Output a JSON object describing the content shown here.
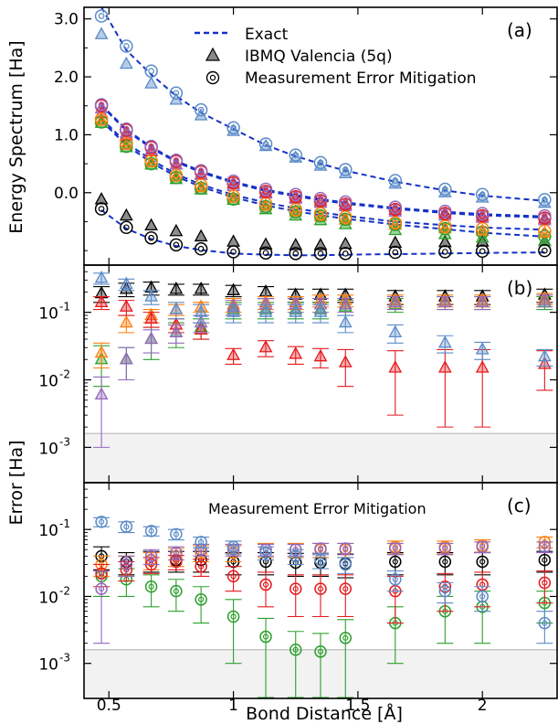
{
  "figure": {
    "x_axis_label": "Bond Distance [Å]",
    "x_ticks": [
      "0.5",
      "1",
      "1.5",
      "2"
    ],
    "shared_y_label": "Error [Ha]"
  },
  "legend": {
    "exact": "Exact",
    "raw": "IBMQ Valencia (5q)",
    "mitigated": "Measurement Error Mitigation"
  },
  "panel_b": {
    "label": "(b)"
  },
  "panel_c": {
    "label": "(c)",
    "title": "Measurement Error Mitigation"
  },
  "colors": {
    "exact_line": "#1432c8",
    "state0": "#000000",
    "state1": "#2ca02c",
    "state2": "#ff7f0e",
    "state3": "#e41a1c",
    "state4": "#9467bd",
    "state5": "#5b8bc8",
    "chem_acc_band": "#f2f2f2",
    "chem_acc_line": "#c8c8c8"
  },
  "chart_data": [
    {
      "panel": "(a)",
      "type": "scatter",
      "ylabel": "Energy Spectrum [Ha]",
      "xlim": [
        0.4,
        2.3
      ],
      "ylim": [
        -1.25,
        3.2
      ],
      "yticks": [
        "3.0",
        "2.0",
        "1.0",
        "0.0"
      ],
      "x": [
        0.47,
        0.57,
        0.67,
        0.77,
        0.87,
        1.0,
        1.13,
        1.25,
        1.35,
        1.45,
        1.65,
        1.85,
        2.0,
        2.25
      ],
      "exact": [
        [
          -0.3,
          -0.62,
          -0.8,
          -0.92,
          -0.99,
          -1.05,
          -1.07,
          -1.08,
          -1.08,
          -1.07,
          -1.06,
          -1.05,
          -1.04,
          -1.03
        ],
        [
          1.24,
          0.82,
          0.52,
          0.28,
          0.1,
          -0.08,
          -0.22,
          -0.32,
          -0.39,
          -0.45,
          -0.55,
          -0.63,
          -0.69,
          -0.76
        ],
        [
          1.28,
          0.86,
          0.57,
          0.32,
          0.14,
          -0.04,
          -0.17,
          -0.27,
          -0.34,
          -0.4,
          -0.5,
          -0.56,
          -0.6,
          -0.64
        ],
        [
          1.5,
          1.07,
          0.77,
          0.53,
          0.35,
          0.17,
          0.03,
          -0.06,
          -0.13,
          -0.19,
          -0.28,
          -0.35,
          -0.39,
          -0.43
        ],
        [
          1.52,
          1.09,
          0.79,
          0.55,
          0.37,
          0.19,
          0.05,
          -0.04,
          -0.11,
          -0.17,
          -0.26,
          -0.33,
          -0.37,
          -0.41
        ],
        [
          3.2,
          2.46,
          2.04,
          1.67,
          1.38,
          1.1,
          0.82,
          0.63,
          0.5,
          0.38,
          0.19,
          0.04,
          -0.05,
          -0.14
        ]
      ],
      "raw": [
        [
          -0.12,
          -0.4,
          -0.57,
          -0.67,
          -0.76,
          -0.85,
          -0.9,
          -0.91,
          -0.91,
          -0.89,
          -0.87,
          -0.86,
          -0.85,
          -0.84
        ],
        [
          1.2,
          0.78,
          0.48,
          0.23,
          0.05,
          -0.13,
          -0.29,
          -0.4,
          -0.48,
          -0.55,
          -0.65,
          -0.72,
          -0.78,
          -0.84
        ],
        [
          1.24,
          0.82,
          0.52,
          0.28,
          0.09,
          -0.09,
          -0.23,
          -0.33,
          -0.41,
          -0.47,
          -0.56,
          -0.62,
          -0.66,
          -0.7
        ],
        [
          1.37,
          0.98,
          0.71,
          0.48,
          0.31,
          0.15,
          0.0,
          -0.09,
          -0.15,
          -0.21,
          -0.3,
          -0.36,
          -0.41,
          -0.45
        ],
        [
          1.45,
          1.03,
          0.73,
          0.48,
          0.3,
          0.11,
          -0.02,
          -0.11,
          -0.18,
          -0.24,
          -0.33,
          -0.4,
          -0.44,
          -0.48
        ],
        [
          2.73,
          2.22,
          1.88,
          1.6,
          1.33,
          1.06,
          0.8,
          0.6,
          0.46,
          0.33,
          0.15,
          0.0,
          -0.09,
          -0.18
        ]
      ],
      "mitigated": [
        [
          -0.28,
          -0.6,
          -0.78,
          -0.9,
          -0.97,
          -1.02,
          -1.04,
          -1.05,
          -1.05,
          -1.05,
          -1.03,
          -1.02,
          -1.01,
          -1.0
        ],
        [
          1.22,
          0.8,
          0.5,
          0.26,
          0.08,
          -0.11,
          -0.24,
          -0.33,
          -0.4,
          -0.46,
          -0.55,
          -0.62,
          -0.68,
          -0.75
        ],
        [
          1.27,
          0.85,
          0.55,
          0.3,
          0.13,
          -0.06,
          -0.19,
          -0.29,
          -0.36,
          -0.42,
          -0.52,
          -0.58,
          -0.62,
          -0.66
        ],
        [
          1.5,
          1.08,
          0.78,
          0.54,
          0.36,
          0.17,
          0.02,
          -0.07,
          -0.14,
          -0.2,
          -0.29,
          -0.36,
          -0.4,
          -0.44
        ],
        [
          1.52,
          1.1,
          0.8,
          0.56,
          0.38,
          0.2,
          0.06,
          -0.03,
          -0.1,
          -0.16,
          -0.25,
          -0.32,
          -0.36,
          -0.4
        ],
        [
          3.05,
          2.53,
          2.1,
          1.72,
          1.43,
          1.12,
          0.84,
          0.65,
          0.52,
          0.4,
          0.21,
          0.06,
          -0.03,
          -0.12
        ]
      ]
    },
    {
      "panel": "(b)",
      "type": "scatter",
      "y_scale": "log",
      "ylim": [
        0.0003,
        0.5
      ],
      "yticks": [
        "10^-1",
        "10^-2",
        "10^-3"
      ],
      "chemical_accuracy": 0.0016,
      "x": [
        0.47,
        0.57,
        0.67,
        0.77,
        0.87,
        1.0,
        1.13,
        1.25,
        1.35,
        1.45,
        1.65,
        1.85,
        2.0,
        2.25
      ],
      "series": [
        {
          "values": [
            0.19,
            0.22,
            0.23,
            0.22,
            0.22,
            0.21,
            0.2,
            0.18,
            0.18,
            0.18,
            0.17,
            0.17,
            0.17,
            0.18
          ],
          "err": [
            0.05,
            0.05,
            0.05,
            0.04,
            0.04,
            0.04,
            0.04,
            0.04,
            0.04,
            0.04,
            0.04,
            0.04,
            0.04,
            0.04
          ]
        },
        {
          "values": [
            0.02,
            0.02,
            0.04,
            0.05,
            0.06,
            0.11,
            0.11,
            0.11,
            0.11,
            0.12,
            0.13,
            0.14,
            0.14,
            0.14
          ],
          "err": [
            0.012,
            0.01,
            0.02,
            0.02,
            0.02,
            0.03,
            0.03,
            0.03,
            0.03,
            0.03,
            0.03,
            0.03,
            0.03,
            0.03
          ]
        },
        {
          "values": [
            0.025,
            0.07,
            0.09,
            0.11,
            0.12,
            0.13,
            0.14,
            0.14,
            0.15,
            0.15,
            0.15,
            0.15,
            0.15,
            0.16
          ],
          "err": [
            0.01,
            0.02,
            0.02,
            0.02,
            0.02,
            0.03,
            0.03,
            0.03,
            0.03,
            0.03,
            0.03,
            0.03,
            0.03,
            0.03
          ]
        },
        {
          "values": [
            0.14,
            0.12,
            0.08,
            0.065,
            0.055,
            0.023,
            0.03,
            0.024,
            0.022,
            0.018,
            0.015,
            0.015,
            0.015,
            0.017
          ],
          "err": [
            0.03,
            0.03,
            0.02,
            0.015,
            0.015,
            0.006,
            0.008,
            0.007,
            0.007,
            0.01,
            0.012,
            0.013,
            0.013,
            0.01
          ]
        },
        {
          "values": [
            0.006,
            0.02,
            0.04,
            0.05,
            0.07,
            0.12,
            0.13,
            0.13,
            0.13,
            0.13,
            0.14,
            0.14,
            0.14,
            0.15
          ],
          "err": [
            0.005,
            0.01,
            0.015,
            0.015,
            0.02,
            0.03,
            0.03,
            0.03,
            0.03,
            0.03,
            0.03,
            0.03,
            0.03,
            0.03
          ]
        },
        {
          "values": [
            0.32,
            0.26,
            0.17,
            0.11,
            0.1,
            0.1,
            0.1,
            0.1,
            0.1,
            0.07,
            0.05,
            0.035,
            0.028,
            0.022
          ],
          "err": [
            0.06,
            0.05,
            0.04,
            0.03,
            0.03,
            0.03,
            0.03,
            0.03,
            0.03,
            0.02,
            0.015,
            0.01,
            0.008,
            0.006
          ]
        }
      ]
    },
    {
      "panel": "(c)",
      "type": "scatter",
      "y_scale": "log",
      "ylim": [
        0.0003,
        0.5
      ],
      "yticks": [
        "10^-1",
        "10^-2",
        "10^-3"
      ],
      "chemical_accuracy": 0.0016,
      "x": [
        0.47,
        0.57,
        0.67,
        0.77,
        0.87,
        1.0,
        1.13,
        1.25,
        1.35,
        1.45,
        1.65,
        1.85,
        2.0,
        2.25
      ],
      "series": [
        {
          "values": [
            0.04,
            0.033,
            0.035,
            0.035,
            0.035,
            0.033,
            0.033,
            0.032,
            0.032,
            0.031,
            0.033,
            0.033,
            0.033,
            0.035
          ],
          "err": [
            0.015,
            0.012,
            0.012,
            0.012,
            0.012,
            0.012,
            0.012,
            0.012,
            0.012,
            0.012,
            0.012,
            0.012,
            0.012,
            0.012
          ]
        },
        {
          "values": [
            0.02,
            0.018,
            0.014,
            0.012,
            0.009,
            0.005,
            0.0025,
            0.0016,
            0.0015,
            0.0024,
            0.004,
            0.006,
            0.007,
            0.008
          ],
          "err": [
            0.01,
            0.008,
            0.007,
            0.006,
            0.005,
            0.004,
            0.0022,
            0.0014,
            0.0013,
            0.0021,
            0.003,
            0.004,
            0.005,
            0.004
          ]
        },
        {
          "values": [
            0.03,
            0.03,
            0.035,
            0.04,
            0.045,
            0.045,
            0.05,
            0.05,
            0.05,
            0.05,
            0.055,
            0.055,
            0.058,
            0.065
          ],
          "err": [
            0.01,
            0.01,
            0.01,
            0.012,
            0.012,
            0.012,
            0.012,
            0.012,
            0.012,
            0.012,
            0.012,
            0.012,
            0.012,
            0.012
          ]
        },
        {
          "values": [
            0.022,
            0.025,
            0.03,
            0.033,
            0.028,
            0.02,
            0.015,
            0.013,
            0.013,
            0.013,
            0.012,
            0.014,
            0.015,
            0.016
          ],
          "err": [
            0.008,
            0.008,
            0.008,
            0.008,
            0.008,
            0.008,
            0.008,
            0.008,
            0.008,
            0.008,
            0.008,
            0.008,
            0.008,
            0.008
          ]
        },
        {
          "values": [
            0.013,
            0.03,
            0.04,
            0.045,
            0.05,
            0.05,
            0.05,
            0.05,
            0.052,
            0.052,
            0.052,
            0.052,
            0.055,
            0.055
          ],
          "err": [
            0.011,
            0.01,
            0.01,
            0.01,
            0.01,
            0.01,
            0.01,
            0.01,
            0.01,
            0.01,
            0.01,
            0.01,
            0.01,
            0.01
          ]
        },
        {
          "values": [
            0.13,
            0.11,
            0.095,
            0.085,
            0.065,
            0.055,
            0.045,
            0.04,
            0.035,
            0.03,
            0.018,
            0.012,
            0.01,
            0.004
          ],
          "err": [
            0.02,
            0.02,
            0.015,
            0.015,
            0.012,
            0.012,
            0.01,
            0.01,
            0.009,
            0.008,
            0.006,
            0.004,
            0.004,
            0.002
          ]
        }
      ]
    }
  ]
}
